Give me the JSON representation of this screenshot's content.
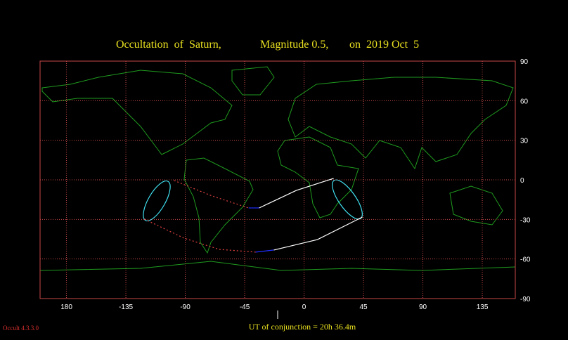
{
  "chart_data": {
    "type": "map",
    "title_parts": [
      "Occultation  of  Saturn,",
      "Magnitude 0.5,",
      "on  2019 Oct  5"
    ],
    "footer": "UT of conjunction = 20h 36.4m",
    "version": "Occult 4.3.3.0",
    "xlim": [
      -200,
      160
    ],
    "ylim": [
      -90,
      90
    ],
    "xticks": [
      {
        "value": -180,
        "label": "180"
      },
      -135,
      -90,
      -45,
      0,
      45,
      90,
      135
    ],
    "yticks": [
      90,
      60,
      30,
      0,
      -30,
      -60,
      -90
    ],
    "grid": true,
    "grid_color": "#c84848",
    "conjunction_lon": -20,
    "series": [
      {
        "color": "#e04040",
        "style": "dotted",
        "x": [
          -98.5,
          -69.8,
          -42
        ],
        "y": [
          -0.5,
          -12.2,
          -21.3
        ]
      },
      {
        "color": "#2030ff",
        "style": "solid",
        "x": [
          -42,
          -34
        ],
        "y": [
          -21.3,
          -21.3
        ]
      },
      {
        "color": "#ffffff",
        "style": "solid",
        "x": [
          -34,
          -5.9,
          22.4
        ],
        "y": [
          -21.3,
          -8,
          1.1
        ]
      },
      {
        "color": "#e04040",
        "style": "dotted",
        "x": [
          -120.9,
          -91,
          -64.4,
          -36.7
        ],
        "y": [
          -29.8,
          -44.2,
          -52.7,
          -54.8
        ]
      },
      {
        "color": "#2030ff",
        "style": "solid",
        "x": [
          -36.7,
          -22.9
        ],
        "y": [
          -54.8,
          -53.2
        ]
      },
      {
        "color": "#ffffff",
        "style": "solid",
        "x": [
          -22.9,
          10.1,
          44.2
        ],
        "y": [
          -53.2,
          -45.3,
          -28.2
        ]
      }
    ]
  }
}
